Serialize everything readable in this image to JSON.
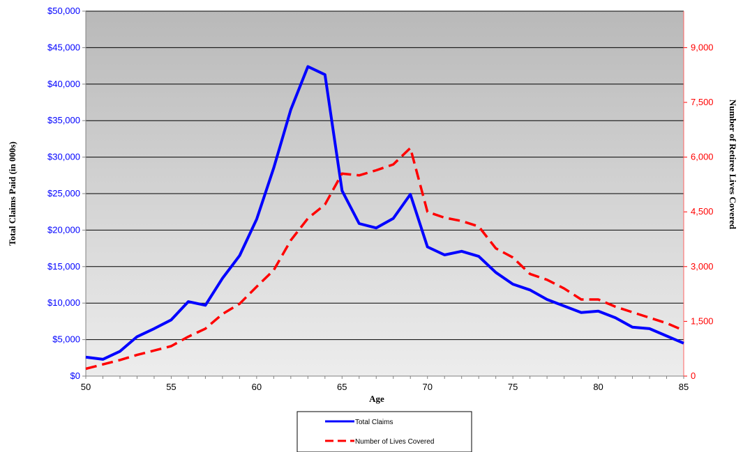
{
  "chart_data": {
    "type": "line",
    "xlabel": "Age",
    "ylabel_left": "Total Claims Paid (in 000s)",
    "ylabel_right": "Number of Retiree Lives Covered",
    "xlim": [
      50,
      85
    ],
    "x_ticks": [
      "50",
      "55",
      "60",
      "65",
      "70",
      "75",
      "80",
      "85"
    ],
    "ylim_left": [
      0,
      50000
    ],
    "y_ticks_left": [
      "$0",
      "$5,000",
      "$10,000",
      "$15,000",
      "$20,000",
      "$25,000",
      "$30,000",
      "$35,000",
      "$40,000",
      "$45,000",
      "$50,000"
    ],
    "ylim_right": [
      0,
      10000
    ],
    "y_ticks_right": [
      "0",
      "1,500",
      "3,000",
      "4,500",
      "6,000",
      "7,500",
      "9,000"
    ],
    "grid": true,
    "legend_position": "bottom-center",
    "x": [
      50,
      51,
      52,
      53,
      54,
      55,
      56,
      57,
      58,
      59,
      60,
      61,
      62,
      63,
      64,
      65,
      66,
      67,
      68,
      69,
      70,
      71,
      72,
      73,
      74,
      75,
      76,
      77,
      78,
      79,
      80,
      81,
      82,
      83,
      84,
      85
    ],
    "series": [
      {
        "name": "Total Claims",
        "axis": "left",
        "color": "#0000ff",
        "style": "solid",
        "values": [
          2600,
          2300,
          3400,
          5400,
          6500,
          7700,
          10200,
          9700,
          13400,
          16500,
          21500,
          28500,
          36500,
          42400,
          41300,
          25400,
          20900,
          20300,
          21600,
          24900,
          17700,
          16600,
          17100,
          16400,
          14200,
          12600,
          11800,
          10500,
          9600,
          8700,
          8900,
          8000,
          6700,
          6500,
          5500,
          4500
        ]
      },
      {
        "name": "Number of Lives Covered",
        "axis": "right",
        "color": "#ff0000",
        "style": "dashed",
        "values": [
          200,
          320,
          440,
          580,
          700,
          820,
          1080,
          1300,
          1700,
          1980,
          2450,
          2900,
          3720,
          4320,
          4700,
          5550,
          5500,
          5640,
          5800,
          6250,
          4500,
          4340,
          4250,
          4100,
          3500,
          3250,
          2800,
          2640,
          2400,
          2100,
          2100,
          1900,
          1750,
          1600,
          1450,
          1250
        ]
      }
    ]
  }
}
